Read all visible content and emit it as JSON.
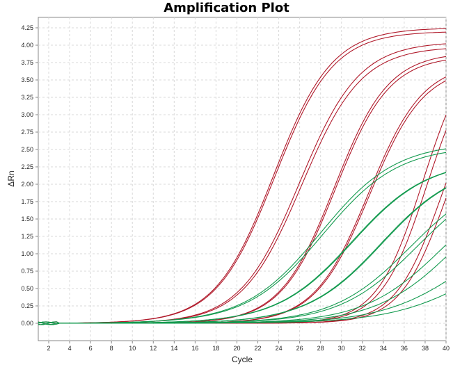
{
  "chart_data": {
    "type": "line",
    "title": "Amplification Plot",
    "xlabel": "Cycle",
    "ylabel": "ΔRn",
    "xlim": [
      1,
      40
    ],
    "ylim": [
      -0.25,
      4.4
    ],
    "xticks": [
      2,
      4,
      6,
      8,
      10,
      12,
      14,
      16,
      18,
      20,
      22,
      24,
      26,
      28,
      30,
      32,
      34,
      36,
      38,
      40
    ],
    "yticks": [
      0.0,
      0.25,
      0.5,
      0.75,
      1.0,
      1.25,
      1.5,
      1.75,
      2.0,
      2.25,
      2.5,
      2.75,
      3.0,
      3.25,
      3.5,
      3.75,
      4.0,
      4.25
    ],
    "ytick_labels": [
      "0.00",
      "0.25",
      "0.50",
      "0.75",
      "1.00",
      "1.25",
      "1.50",
      "1.75",
      "2.00",
      "2.25",
      "2.50",
      "2.75",
      "3.00",
      "3.25",
      "3.50",
      "3.75",
      "4.00",
      "4.25"
    ],
    "grid": true,
    "colors": {
      "red": "#b0192a",
      "green": "#129a4e",
      "grid": "#d9d9d9",
      "axis": "#888888"
    },
    "curve_model": "sigmoid: y = plateau / (1 + exp(-(cycle - midpoint) / slope))",
    "series": [
      {
        "color": "red",
        "plateau": 4.25,
        "midpoint": 23.5,
        "slope": 2.8
      },
      {
        "color": "red",
        "plateau": 4.2,
        "midpoint": 23.6,
        "slope": 2.8
      },
      {
        "color": "red",
        "plateau": 4.05,
        "midpoint": 26.0,
        "slope": 2.85
      },
      {
        "color": "red",
        "plateau": 3.98,
        "midpoint": 26.2,
        "slope": 2.85
      },
      {
        "color": "red",
        "plateau": 3.9,
        "midpoint": 29.3,
        "slope": 2.6
      },
      {
        "color": "red",
        "plateau": 3.85,
        "midpoint": 29.4,
        "slope": 2.6
      },
      {
        "color": "red",
        "plateau": 3.75,
        "midpoint": 32.6,
        "slope": 2.6
      },
      {
        "color": "red",
        "plateau": 3.7,
        "midpoint": 32.7,
        "slope": 2.6
      },
      {
        "color": "red",
        "plateau": 4.1,
        "midpoint": 37.8,
        "slope": 2.2
      },
      {
        "color": "red",
        "plateau": 4.0,
        "midpoint": 38.2,
        "slope": 2.2
      },
      {
        "color": "red",
        "plateau": 3.7,
        "midpoint": 39.6,
        "slope": 2.2
      },
      {
        "color": "red",
        "plateau": 3.6,
        "midpoint": 40.0,
        "slope": 2.2
      },
      {
        "color": "green",
        "plateau": 2.6,
        "midpoint": 28.0,
        "slope": 3.6
      },
      {
        "color": "green",
        "plateau": 2.55,
        "midpoint": 28.2,
        "slope": 3.6
      },
      {
        "color": "green",
        "plateau": 2.35,
        "midpoint": 31.0,
        "slope": 3.6
      },
      {
        "color": "green",
        "plateau": 2.35,
        "midpoint": 31.1,
        "slope": 3.6
      },
      {
        "color": "green",
        "plateau": 2.3,
        "midpoint": 33.8,
        "slope": 3.6
      },
      {
        "color": "green",
        "plateau": 2.3,
        "midpoint": 33.9,
        "slope": 3.6
      },
      {
        "color": "green",
        "plateau": 2.2,
        "midpoint": 36.6,
        "slope": 3.7
      },
      {
        "color": "green",
        "plateau": 2.2,
        "midpoint": 37.2,
        "slope": 3.7
      },
      {
        "color": "green",
        "plateau": 2.2,
        "midpoint": 39.8,
        "slope": 3.8
      },
      {
        "color": "green",
        "plateau": 2.2,
        "midpoint": 41.0,
        "slope": 3.8
      },
      {
        "color": "green",
        "plateau": 1.6,
        "midpoint": 42.0,
        "slope": 4.0
      },
      {
        "color": "green",
        "plateau": 1.4,
        "midpoint": 43.5,
        "slope": 4.2
      }
    ]
  }
}
